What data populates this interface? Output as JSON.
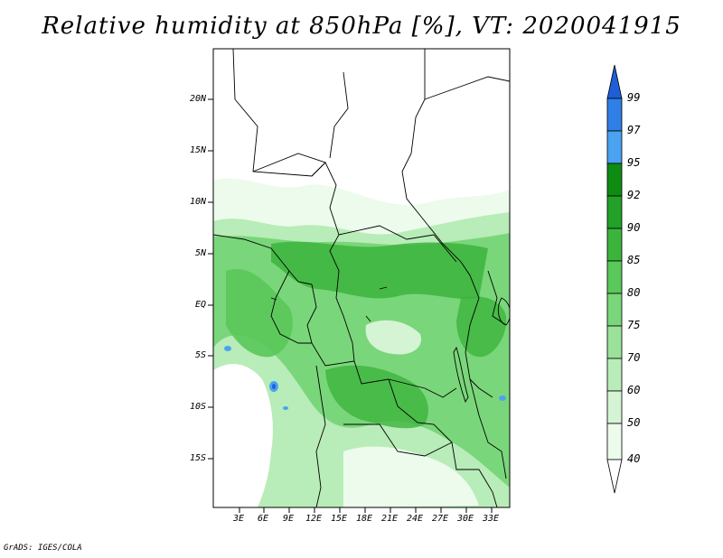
{
  "title": "Relative humidity at 850hPa [%], VT: 2020041915",
  "credit": "GrADS: IGES/COLA",
  "map": {
    "variable": "Relative humidity",
    "level": "850hPa",
    "units": "%",
    "valid_time": "2020041915",
    "lat_labels": [
      "20N",
      "15N",
      "10N",
      "5N",
      "EQ",
      "5S",
      "10S",
      "15S"
    ],
    "lon_labels": [
      "3E",
      "6E",
      "9E",
      "12E",
      "15E",
      "18E",
      "21E",
      "24E",
      "27E",
      "30E",
      "33E"
    ]
  },
  "colorbar": {
    "levels": [
      "99",
      "97",
      "95",
      "92",
      "90",
      "85",
      "80",
      "75",
      "70",
      "60",
      "50",
      "40"
    ],
    "colors": [
      "#1e5fd8",
      "#2f7fe6",
      "#4aa2f0",
      "#0e8c12",
      "#22a028",
      "#3cb43c",
      "#5ac85a",
      "#7ad67a",
      "#9ae29a",
      "#b8ecb8",
      "#d4f4d4",
      "#ecfbec",
      "#ffffff"
    ]
  },
  "palette": {
    "land_light": "#f2fcf2",
    "border": "#000000"
  }
}
